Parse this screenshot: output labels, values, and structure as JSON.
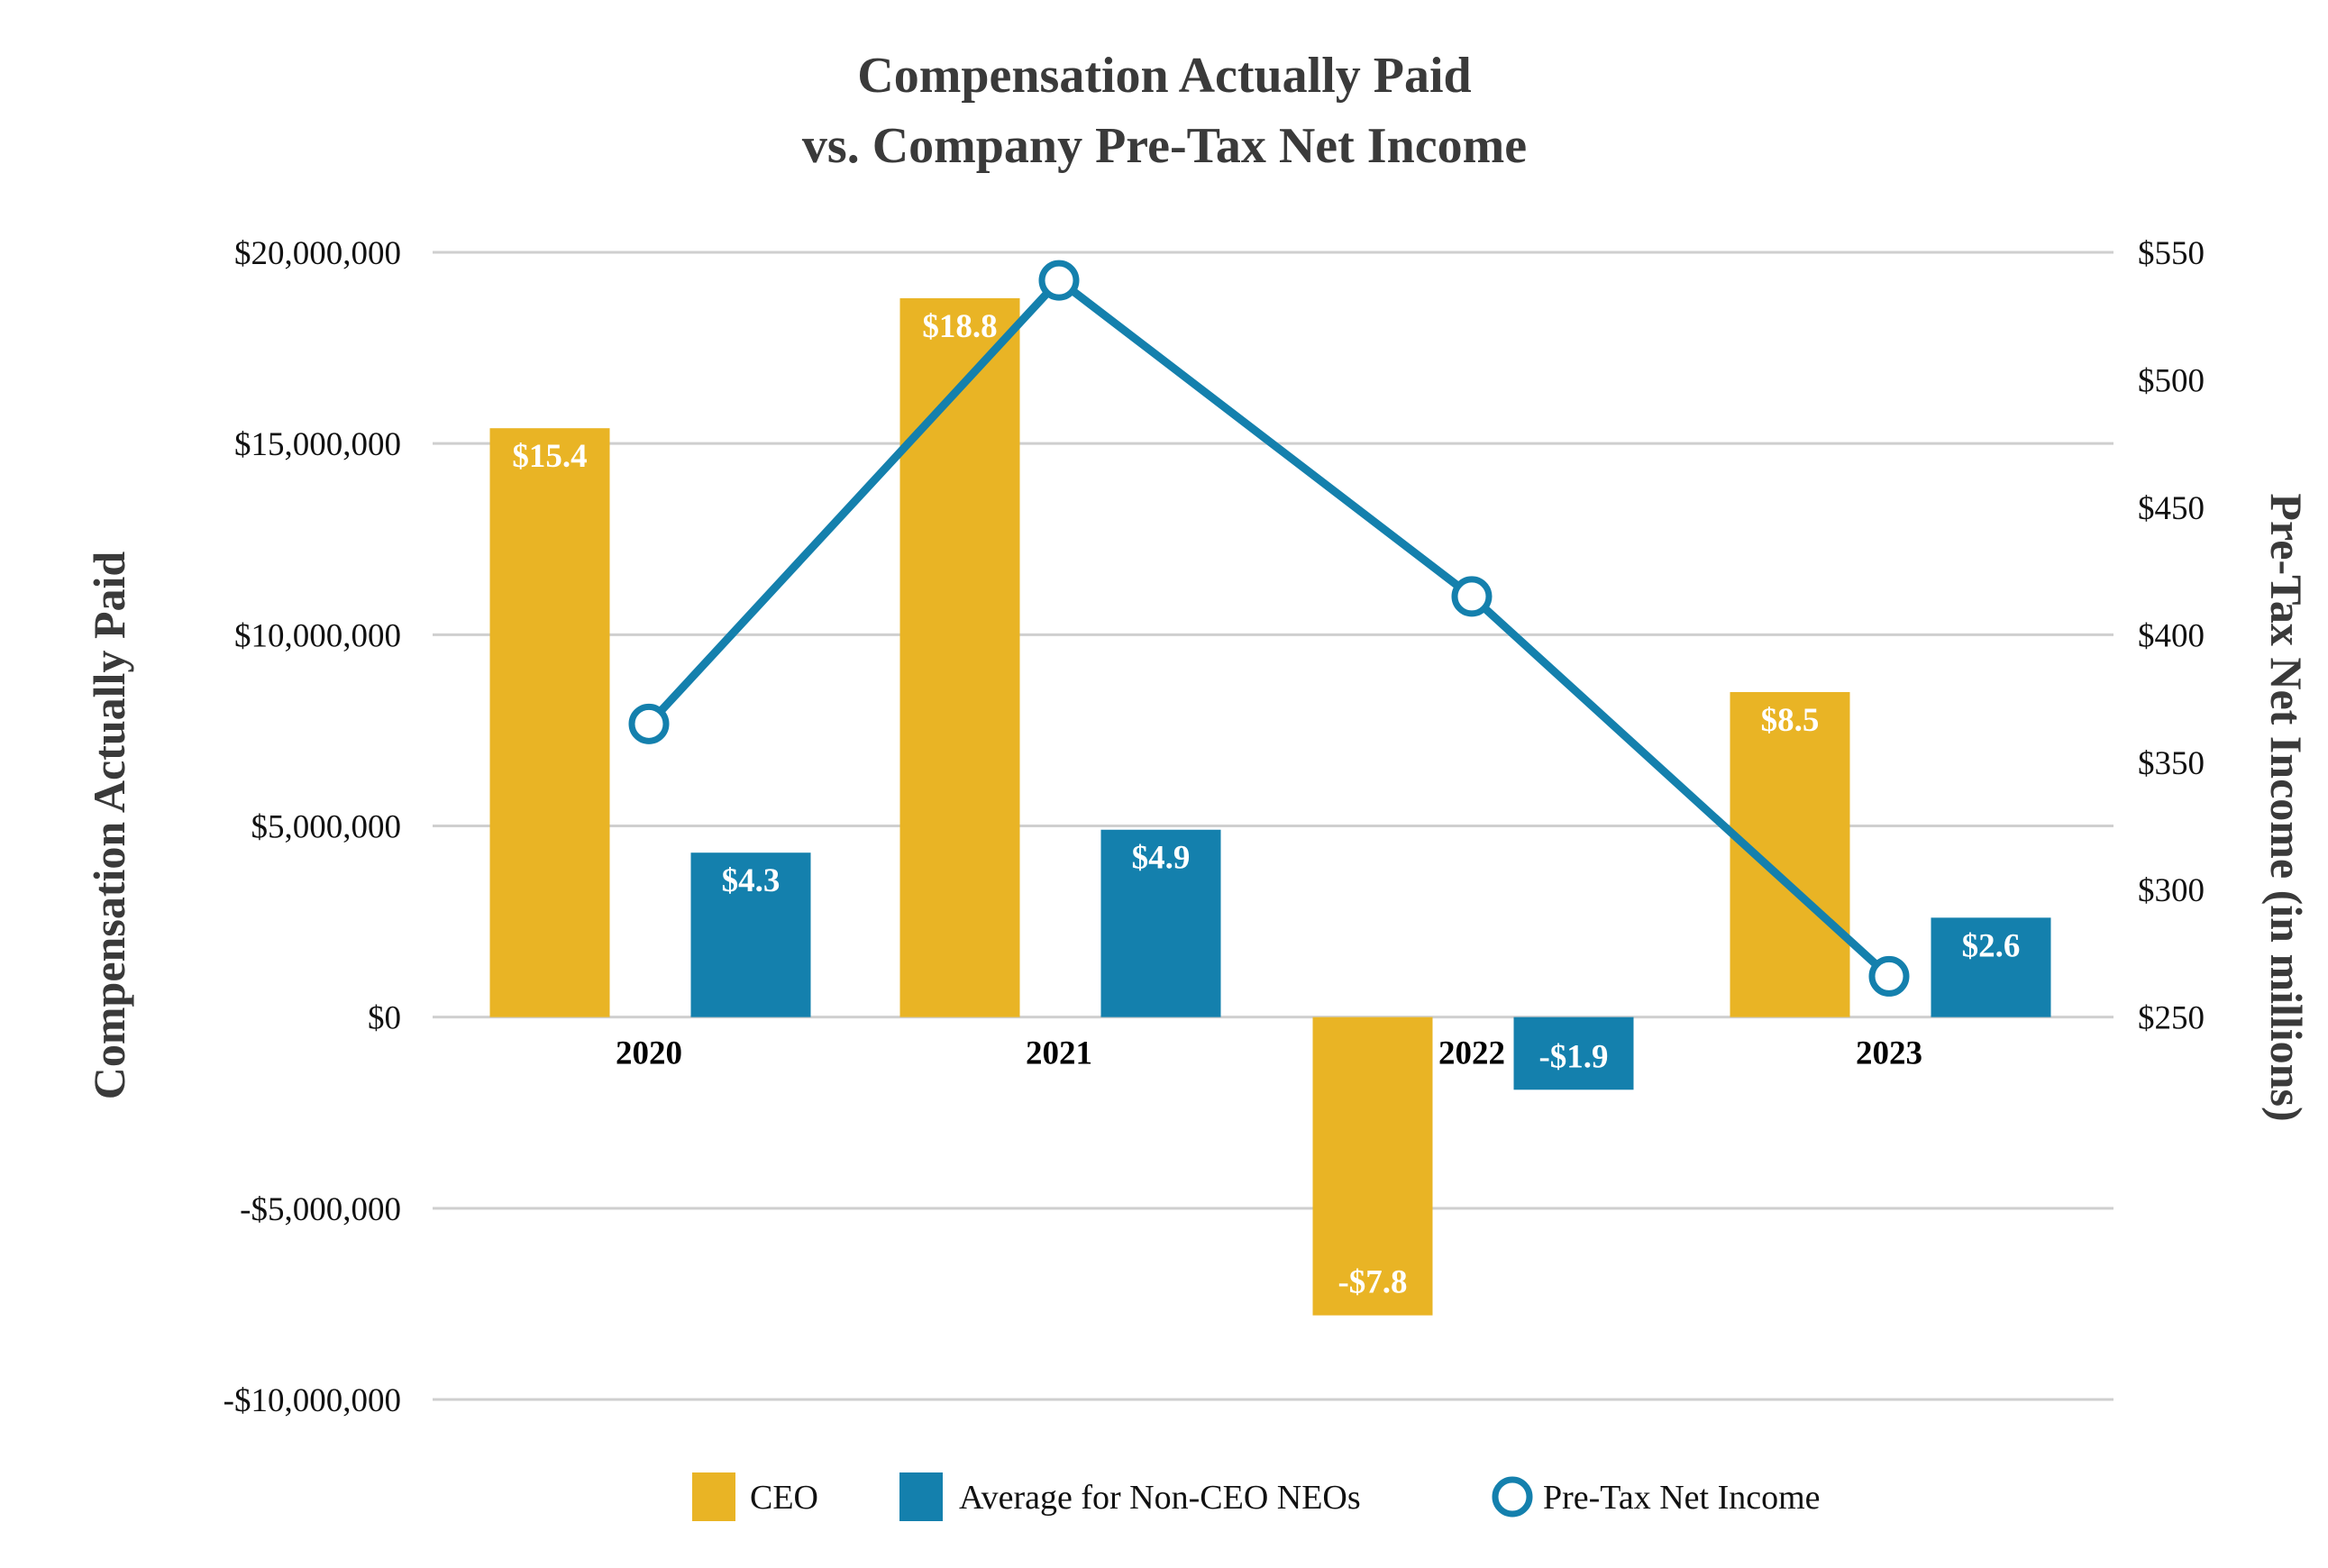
{
  "chart_data": {
    "type": "bar+line",
    "title": [
      "Compensation Actually Paid",
      "vs. Company Pre-Tax Net Income"
    ],
    "categories": [
      "2020",
      "2021",
      "2022",
      "2023"
    ],
    "y_left": {
      "label": "Compensation Actually Paid",
      "range": [
        -10000000,
        20000000
      ],
      "ticks": [
        20000000,
        15000000,
        10000000,
        5000000,
        0,
        -5000000,
        -10000000
      ],
      "tick_labels": [
        "$20,000,000",
        "$15,000,000",
        "$10,000,000",
        "$5,000,000",
        "$0",
        "-$5,000,000",
        "-$10,000,000"
      ]
    },
    "y_right": {
      "label": "Pre-Tax Net Income (in millions)",
      "range": [
        250,
        550
      ],
      "ticks": [
        550,
        500,
        450,
        400,
        350,
        300,
        250
      ],
      "tick_labels": [
        "$550",
        "$500",
        "$450",
        "$400",
        "$350",
        "$300",
        "$250"
      ]
    },
    "grid": true,
    "legend_position": "bottom",
    "series": [
      {
        "name": "CEO",
        "type": "bar",
        "axis": "left",
        "color": "#E9B425",
        "values": [
          15400000,
          18800000,
          -7800000,
          8500000
        ],
        "labels": [
          "$15.4",
          "$18.8",
          "-$7.8",
          "$8.5"
        ]
      },
      {
        "name": "Average for Non-CEO NEOs",
        "type": "bar",
        "axis": "left",
        "color": "#1480AD",
        "values": [
          4300000,
          4900000,
          -1900000,
          2600000
        ],
        "labels": [
          "$4.3",
          "$4.9",
          "-$1.9",
          "$2.6"
        ]
      },
      {
        "name": "Pre-Tax Net Income",
        "type": "line",
        "axis": "right",
        "color": "#1480AD",
        "values": [
          365,
          539,
          415,
          266
        ]
      }
    ]
  }
}
